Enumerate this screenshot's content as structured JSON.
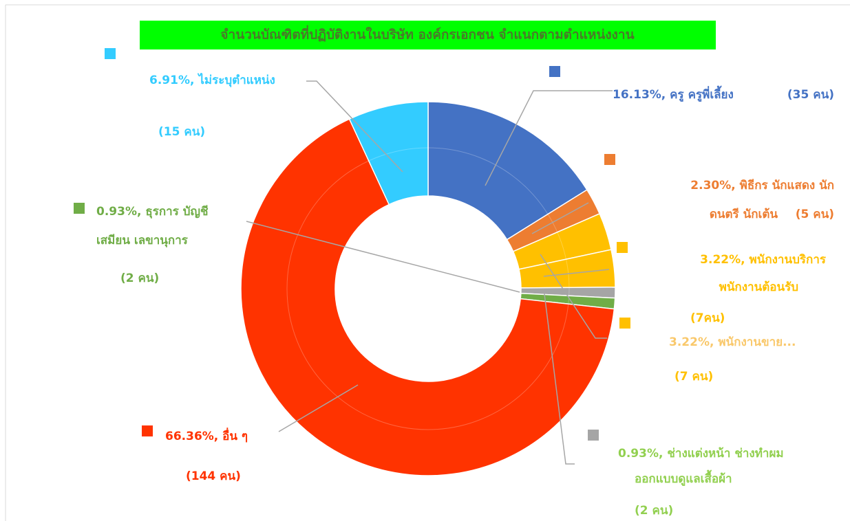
{
  "chart_data": {
    "type": "donut",
    "title": "จำนวนบัณฑิตที่ปฏิบัติงานในบริษัท องค์กรเอกชน จำแนกตามตำแหน่งงาน",
    "values": [
      16.13,
      2.3,
      3.22,
      3.22,
      0.93,
      0.93,
      66.36,
      6.91
    ],
    "colors": [
      "#4472c4",
      "#ed7d31",
      "#ffc000",
      "#ffc000",
      "#a5a5a5",
      "#70ad47",
      "#ff3300",
      "#33ccff"
    ],
    "value_labels": [
      [
        "16.13%, ครู ครูพี่เลี้ยง"
      ],
      [
        "2.30%, พิธีกร นักแสดง นัก",
        "ดนตรี นักเต้น"
      ],
      [
        "3.22%, พนักงานบริการ",
        "พนักงานต้อนรับ"
      ],
      [
        "3.22%, พนักงานขาย..."
      ],
      [
        "0.93%, ช่างแต่งหน้า ช่างทำผม",
        "ออกแบบดูแลเสื้อผ้า"
      ],
      [
        "0.93%, ธุรการ บัญชี",
        "เสมียน เลขานุการ"
      ],
      [
        "66.36%, อื่น ๆ"
      ],
      [
        "6.91%, ไม่ระบุตำแหน่ง"
      ]
    ],
    "count_labels": [
      "(35 คน)",
      "(5 คน)",
      "(7คน)",
      "(7 คน)",
      "(2 คน)",
      "(2 คน)",
      "(144 คน)",
      "(15 คน)"
    ]
  }
}
